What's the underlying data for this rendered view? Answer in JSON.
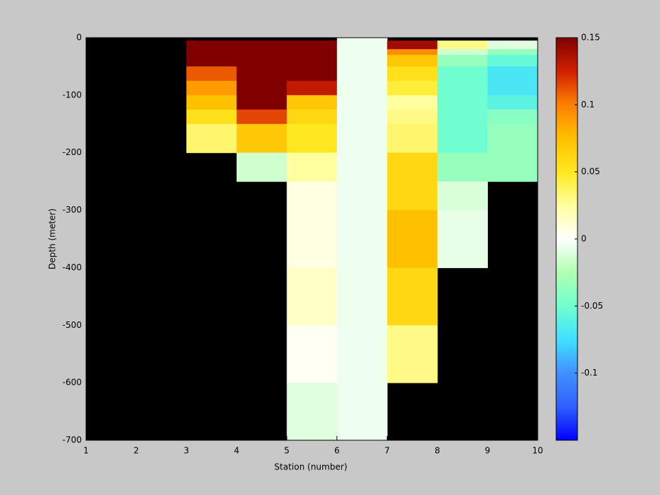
{
  "chart_data": {
    "type": "pcolor",
    "xlabel": "Station (number)",
    "ylabel": "Depth (meter)",
    "xlim": [
      1,
      10
    ],
    "ylim": [
      -700,
      0
    ],
    "xticks": [
      1,
      2,
      3,
      4,
      5,
      6,
      7,
      8,
      9,
      10
    ],
    "yticks": [
      0,
      -100,
      -200,
      -300,
      -400,
      -500,
      -600,
      -700
    ],
    "x_edges": [
      1,
      2,
      3,
      4,
      5,
      6,
      7,
      8,
      9,
      10
    ],
    "depth_edges": [
      0,
      -5,
      -20,
      -30,
      -50,
      -75,
      -100,
      -125,
      -150,
      -200,
      -250,
      -300,
      -400,
      -500,
      -600,
      -700
    ],
    "values": [
      [
        null,
        null,
        null,
        null,
        null,
        null,
        null,
        null,
        null,
        null,
        null,
        null,
        null,
        null,
        null
      ],
      [
        null,
        null,
        null,
        null,
        null,
        null,
        null,
        null,
        null,
        null,
        null,
        null,
        null,
        null,
        null
      ],
      [
        null,
        0.15,
        0.15,
        0.15,
        0.11,
        0.09,
        0.075,
        0.055,
        0.035,
        null,
        null,
        null,
        null,
        null,
        null
      ],
      [
        null,
        0.15,
        0.15,
        0.15,
        0.15,
        0.15,
        0.15,
        0.115,
        0.07,
        -0.015,
        null,
        null,
        null,
        null,
        null
      ],
      [
        null,
        0.15,
        0.15,
        0.15,
        0.15,
        0.13,
        0.07,
        0.06,
        0.05,
        0.025,
        0.008,
        0.008,
        0.015,
        0.003,
        -0.01
      ],
      [
        -0.005,
        -0.005,
        -0.005,
        -0.005,
        -0.005,
        -0.005,
        -0.005,
        -0.005,
        -0.005,
        -0.005,
        -0.005,
        -0.005,
        -0.005,
        -0.005,
        -0.005
      ],
      [
        null,
        0.14,
        0.095,
        0.07,
        0.055,
        0.045,
        0.025,
        0.03,
        0.035,
        0.06,
        0.06,
        0.075,
        0.06,
        0.03,
        null
      ],
      [
        null,
        0.03,
        -0.015,
        -0.035,
        -0.05,
        -0.05,
        -0.05,
        -0.05,
        -0.05,
        -0.035,
        -0.012,
        -0.008,
        null,
        null,
        null
      ],
      [
        null,
        -0.01,
        -0.035,
        -0.055,
        -0.07,
        -0.07,
        -0.06,
        -0.04,
        -0.035,
        -0.035,
        null,
        null,
        null,
        null,
        null
      ]
    ],
    "clim": [
      -0.15,
      0.15
    ],
    "cticks": [
      -0.1,
      -0.05,
      0,
      0.05,
      0.1,
      0.15
    ],
    "colormap": [
      "#0000ff",
      "#3060ff",
      "#4090ff",
      "#40e0ff",
      "#70ffd0",
      "#b0ffb0",
      "#ffffff",
      "#ffffa0",
      "#ffe820",
      "#ffc000",
      "#ff8000",
      "#d02000",
      "#800000"
    ],
    "nan_color": "#000000"
  }
}
